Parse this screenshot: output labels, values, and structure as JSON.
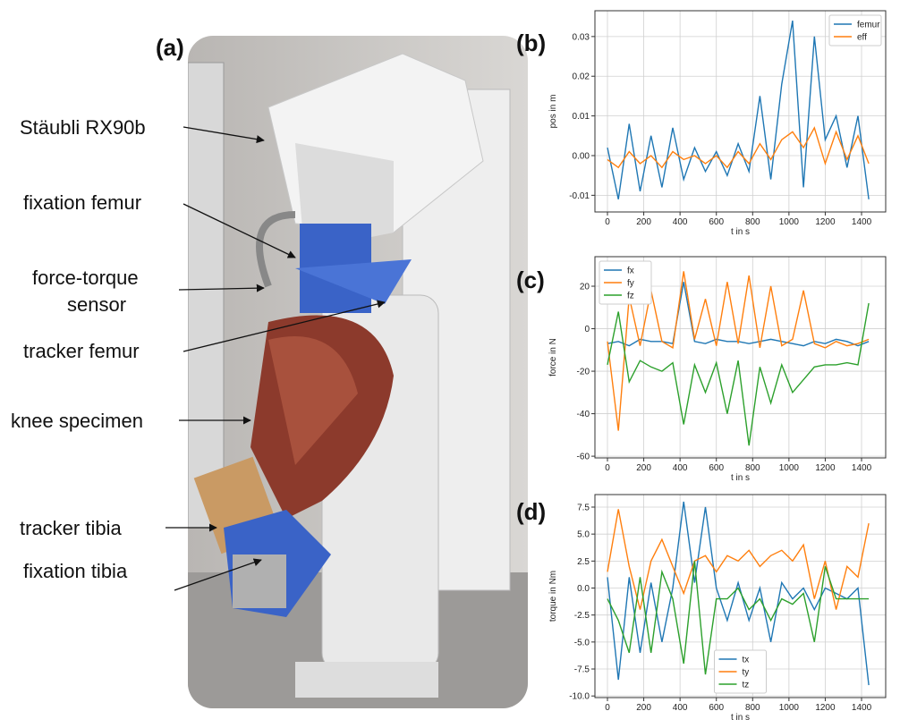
{
  "photo": {
    "panel": "(a)",
    "labels": [
      "Stäubli RX90b",
      "fixation femur",
      "force-torque",
      "sensor",
      "tracker femur",
      "knee specimen",
      "tracker tibia",
      "fixation tibia"
    ]
  },
  "chart_data": [
    {
      "type": "line",
      "panel": "(b)",
      "xlabel": "t in s",
      "ylabel": "pos in m",
      "grid": true,
      "legend": "upper right",
      "x": [
        0,
        60,
        120,
        180,
        240,
        300,
        360,
        420,
        480,
        540,
        600,
        660,
        720,
        780,
        840,
        900,
        960,
        1020,
        1080,
        1140,
        1200,
        1260,
        1320,
        1380,
        1440
      ],
      "xlim": [
        -69,
        1533
      ],
      "xticks": [
        0,
        200,
        400,
        600,
        800,
        1000,
        1200,
        1400
      ],
      "ylim": [
        -0.0142,
        0.0365
      ],
      "yticks": [
        -0.01,
        {
          "value": 0,
          "label": "0.00"
        },
        0.01,
        0.02,
        0.03
      ],
      "series": [
        {
          "name": "femur",
          "color": "#1f77b4",
          "values": [
            0.002,
            -0.011,
            0.008,
            -0.009,
            0.005,
            -0.008,
            0.007,
            -0.006,
            0.002,
            -0.004,
            0.001,
            -0.005,
            0.003,
            -0.004,
            0.015,
            -0.006,
            0.018,
            0.034,
            -0.008,
            0.03,
            0.004,
            0.01,
            -0.003,
            0.01,
            -0.011
          ]
        },
        {
          "name": "eff",
          "color": "#ff7f0e",
          "values": [
            -0.001,
            -0.003,
            0.001,
            -0.002,
            0.0,
            -0.003,
            0.001,
            -0.001,
            0.0,
            -0.002,
            0.0,
            -0.003,
            0.001,
            -0.002,
            0.003,
            -0.001,
            0.004,
            0.006,
            0.002,
            0.007,
            -0.002,
            0.006,
            -0.001,
            0.005,
            -0.002
          ]
        }
      ]
    },
    {
      "type": "line",
      "panel": "(c)",
      "xlabel": "t in s",
      "ylabel": "force in N",
      "grid": true,
      "legend": "upper left",
      "x": [
        0,
        60,
        120,
        180,
        240,
        300,
        360,
        420,
        480,
        540,
        600,
        660,
        720,
        780,
        840,
        900,
        960,
        1020,
        1080,
        1140,
        1200,
        1260,
        1320,
        1380,
        1440
      ],
      "xlim": [
        -69,
        1533
      ],
      "xticks": [
        0,
        200,
        400,
        600,
        800,
        1000,
        1200,
        1400
      ],
      "ylim": [
        -60.8,
        33.9
      ],
      "yticks": [
        -60,
        -40,
        -20,
        0,
        20
      ],
      "series": [
        {
          "name": "fx",
          "color": "#1f77b4",
          "values": [
            -7,
            -6,
            -8,
            -5,
            -6,
            -6,
            -7,
            22,
            -6,
            -7,
            -5,
            -6,
            -6,
            -7,
            -6,
            -5,
            -6,
            -7,
            -8,
            -6,
            -7,
            -5,
            -6,
            -8,
            -6
          ]
        },
        {
          "name": "fy",
          "color": "#ff7f0e",
          "values": [
            -6,
            -48,
            15,
            -8,
            18,
            -6,
            -9,
            27,
            -5,
            14,
            -8,
            22,
            -7,
            25,
            -9,
            20,
            -8,
            -5,
            18,
            -7,
            -9,
            -6,
            -8,
            -7,
            -5
          ]
        },
        {
          "name": "fz",
          "color": "#2ca02c",
          "values": [
            -17,
            8,
            -25,
            -15,
            -18,
            -20,
            -16,
            -45,
            -17,
            -30,
            -16,
            -40,
            -15,
            -55,
            -18,
            -35,
            -17,
            -30,
            -24,
            -18,
            -17,
            -17,
            -16,
            -17,
            12
          ]
        }
      ]
    },
    {
      "type": "line",
      "panel": "(d)",
      "xlabel": "t in s",
      "ylabel": "torque in Nm",
      "grid": true,
      "legend": "lower center",
      "x": [
        0,
        60,
        120,
        180,
        240,
        300,
        360,
        420,
        480,
        540,
        600,
        660,
        720,
        780,
        840,
        900,
        960,
        1020,
        1080,
        1140,
        1200,
        1260,
        1320,
        1380,
        1440
      ],
      "xlim": [
        -69,
        1533
      ],
      "xticks": [
        0,
        200,
        400,
        600,
        800,
        1000,
        1200,
        1400
      ],
      "ylim": [
        -10.15,
        8.66
      ],
      "yticks": [
        {
          "value": -10,
          "label": "-10.0"
        },
        -7.5,
        {
          "value": -5,
          "label": "-5.0"
        },
        -2.5,
        {
          "value": 0,
          "label": "0.0"
        },
        2.5,
        {
          "value": 5,
          "label": "5.0"
        },
        7.5
      ],
      "series": [
        {
          "name": "tx",
          "color": "#1f77b4",
          "values": [
            1,
            -8.5,
            1,
            -6,
            0.5,
            -5,
            0,
            8,
            0.5,
            7.5,
            0,
            -3,
            0.5,
            -3,
            0,
            -5,
            0.5,
            -1,
            0,
            -2,
            0,
            -0.5,
            -1,
            0,
            -9
          ]
        },
        {
          "name": "ty",
          "color": "#ff7f0e",
          "values": [
            1.5,
            7.3,
            2,
            -2,
            2.5,
            4.5,
            2,
            -0.5,
            2.5,
            3,
            1.5,
            3,
            2.5,
            3.5,
            2,
            3,
            3.5,
            2.5,
            4,
            -1,
            2.5,
            -2,
            2,
            1,
            6
          ]
        },
        {
          "name": "tz",
          "color": "#2ca02c",
          "values": [
            -1,
            -3,
            -6,
            1,
            -6,
            1.5,
            -1,
            -7,
            2.5,
            -8,
            -1,
            -1,
            0,
            -2,
            -1,
            -3,
            -1,
            -1.5,
            -0.5,
            -5,
            2,
            -1,
            -1,
            -1,
            -1
          ]
        }
      ]
    }
  ]
}
